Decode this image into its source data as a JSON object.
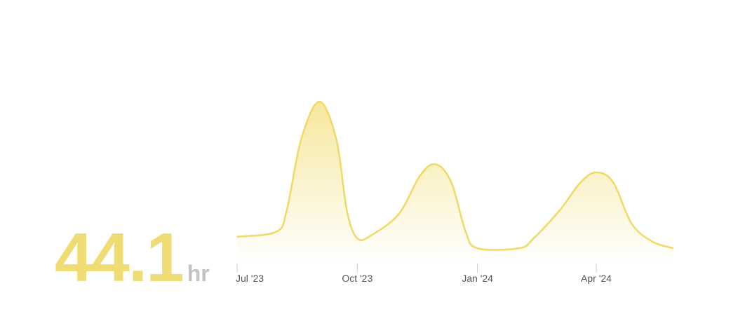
{
  "summary": {
    "value": "44.1",
    "unit": "hr"
  },
  "colors": {
    "line": "#f0d964",
    "fill": "#f3df7a",
    "tick": "#cccccc",
    "value": "#efdc74",
    "unit": "#c4c4c4"
  },
  "chart_data": {
    "type": "area",
    "title": "",
    "xlabel": "",
    "ylabel": "",
    "x_axis": "date",
    "ylim": [
      0,
      100
    ],
    "y_units": "relative (no y-axis shown)",
    "grid": false,
    "x_ticks": [
      {
        "date": "2023-07-01",
        "label": "Jul '23"
      },
      {
        "date": "2023-10-01",
        "label": "Oct '23"
      },
      {
        "date": "2024-01-01",
        "label": "Jan '24"
      },
      {
        "date": "2024-04-01",
        "label": "Apr '24"
      }
    ],
    "series": [
      {
        "x": [
          "2023-07-01",
          "2023-07-31",
          "2023-08-08",
          "2023-08-19",
          "2023-09-02",
          "2023-09-15",
          "2023-09-23",
          "2023-10-01",
          "2023-10-12",
          "2023-11-02",
          "2023-11-18",
          "2023-11-30",
          "2023-12-12",
          "2023-12-23",
          "2024-01-01",
          "2024-02-02",
          "2024-02-13",
          "2024-03-04",
          "2024-03-20",
          "2024-04-01",
          "2024-04-14",
          "2024-04-28",
          "2024-05-14",
          "2024-05-30"
        ],
        "y": [
          18,
          21,
          34,
          77,
          100,
          77,
          34,
          17,
          19,
          32,
          55,
          62,
          51,
          21,
          11,
          11,
          17,
          34,
          51,
          57,
          51,
          26,
          15,
          11
        ]
      }
    ]
  }
}
